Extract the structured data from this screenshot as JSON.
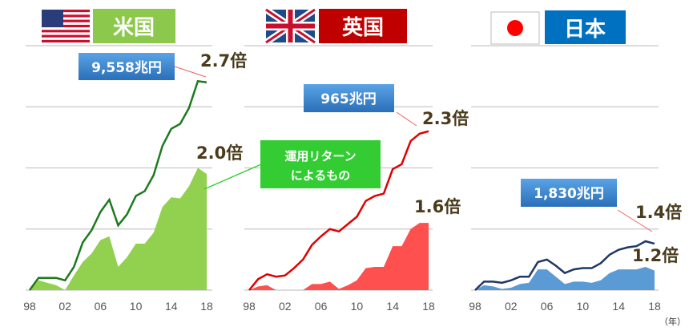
{
  "colors": {
    "us_label": "#8cc84b",
    "uk_label": "#c00000",
    "jp_label": "#0070c0",
    "text": "#4a3b1c",
    "callout_blue": "#3a86cf",
    "note_green": "#33cc33"
  },
  "chart_data": [
    {
      "type": "area",
      "title": "米国",
      "x": [
        "98",
        "99",
        "00",
        "01",
        "02",
        "03",
        "04",
        "05",
        "06",
        "07",
        "08",
        "09",
        "10",
        "11",
        "12",
        "13",
        "14",
        "15",
        "16",
        "17",
        "18"
      ],
      "xticks": [
        "98",
        "02",
        "06",
        "10",
        "14",
        "18"
      ],
      "ylim": [
        1.0,
        3.0
      ],
      "grid": true,
      "series": [
        {
          "name": "total_assets",
          "kind": "line",
          "color": "#1e7a1e",
          "values": [
            1.0,
            1.1,
            1.1,
            1.1,
            1.08,
            1.19,
            1.39,
            1.49,
            1.64,
            1.74,
            1.53,
            1.62,
            1.77,
            1.81,
            1.94,
            2.18,
            2.32,
            2.36,
            2.49,
            2.71,
            2.7
          ]
        },
        {
          "name": "investment_return",
          "kind": "area",
          "color": "#92d050",
          "values": [
            1.0,
            1.08,
            1.06,
            1.04,
            1.0,
            1.12,
            1.23,
            1.3,
            1.41,
            1.44,
            1.19,
            1.27,
            1.38,
            1.38,
            1.47,
            1.68,
            1.76,
            1.75,
            1.85,
            2.0,
            1.95
          ]
        }
      ],
      "annotations": {
        "amount": "9,558兆円",
        "line_multiple": "2.7倍",
        "area_multiple": "2.0倍"
      }
    },
    {
      "type": "area",
      "title": "英国",
      "x": [
        "98",
        "99",
        "00",
        "01",
        "02",
        "03",
        "04",
        "05",
        "06",
        "07",
        "08",
        "09",
        "10",
        "11",
        "12",
        "13",
        "14",
        "15",
        "16",
        "17",
        "18"
      ],
      "xticks": [
        "98",
        "02",
        "06",
        "10",
        "14",
        "18"
      ],
      "ylim": [
        1.0,
        3.0
      ],
      "grid": true,
      "series": [
        {
          "name": "total_assets",
          "kind": "line",
          "color": "#e00000",
          "values": [
            1.0,
            1.09,
            1.13,
            1.11,
            1.12,
            1.18,
            1.25,
            1.37,
            1.44,
            1.5,
            1.48,
            1.54,
            1.6,
            1.73,
            1.77,
            1.79,
            1.99,
            2.03,
            2.22,
            2.28,
            2.3
          ]
        },
        {
          "name": "investment_return",
          "kind": "area",
          "color": "#ff5050",
          "values": [
            1.0,
            1.03,
            1.04,
            1.0,
            1.0,
            1.0,
            1.0,
            1.05,
            1.05,
            1.07,
            1.01,
            1.04,
            1.08,
            1.18,
            1.19,
            1.19,
            1.36,
            1.36,
            1.5,
            1.55,
            1.55
          ]
        }
      ],
      "annotations": {
        "amount": "965兆円",
        "line_multiple": "2.3倍",
        "area_multiple": "1.6倍"
      }
    },
    {
      "type": "area",
      "title": "日本",
      "x": [
        "98",
        "99",
        "00",
        "01",
        "02",
        "03",
        "04",
        "05",
        "06",
        "07",
        "08",
        "09",
        "10",
        "11",
        "12",
        "13",
        "14",
        "15",
        "16",
        "17",
        "18"
      ],
      "xticks": [
        "98",
        "02",
        "06",
        "10",
        "14",
        "18"
      ],
      "ylim": [
        1.0,
        3.0
      ],
      "grid": true,
      "series": [
        {
          "name": "total_assets",
          "kind": "line",
          "color": "#1f3864",
          "values": [
            1.0,
            1.07,
            1.07,
            1.06,
            1.08,
            1.11,
            1.11,
            1.23,
            1.25,
            1.2,
            1.14,
            1.17,
            1.18,
            1.18,
            1.22,
            1.29,
            1.33,
            1.35,
            1.36,
            1.4,
            1.38
          ]
        },
        {
          "name": "investment_return",
          "kind": "area",
          "color": "#5b9bd5",
          "values": [
            1.0,
            1.04,
            1.03,
            1.01,
            1.02,
            1.05,
            1.06,
            1.17,
            1.17,
            1.11,
            1.05,
            1.07,
            1.07,
            1.06,
            1.08,
            1.14,
            1.17,
            1.17,
            1.17,
            1.19,
            1.16
          ]
        }
      ],
      "annotations": {
        "amount": "1,830兆円",
        "line_multiple": "1.4倍",
        "area_multiple": "1.2倍"
      }
    }
  ],
  "note": {
    "line1": "運用リターン",
    "line2": "によるもの"
  },
  "x_unit": "（年）"
}
